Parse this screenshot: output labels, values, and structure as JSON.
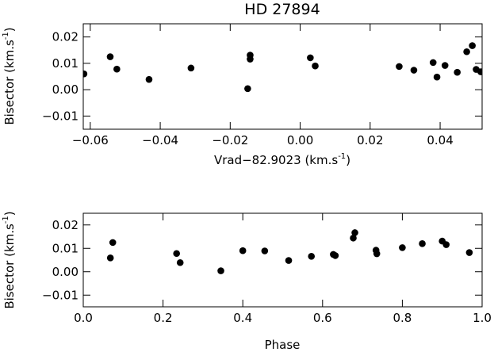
{
  "chart_data": [
    {
      "type": "scatter",
      "title": "HD 27894",
      "xlabel": "Vrad−82.9023 (km.s",
      "xlabel_sup": "-1",
      "xlabel_end": ")",
      "ylabel": "Bisector (km.s",
      "ylabel_sup": "-1",
      "ylabel_end": ")",
      "xlim": [
        -0.062,
        0.052
      ],
      "ylim": [
        -0.015,
        0.025
      ],
      "xticks": [
        -0.06,
        -0.04,
        -0.02,
        0.0,
        0.02,
        0.04
      ],
      "xtick_labels": [
        "−0.06",
        "−0.04",
        "−0.02",
        "0.00",
        "0.02",
        "0.04"
      ],
      "yticks": [
        -0.01,
        0.0,
        0.01,
        0.02
      ],
      "ytick_labels": [
        "−0.01",
        "0.00",
        "0.01",
        "0.02"
      ],
      "grid": false,
      "points": [
        {
          "x": -0.0618,
          "y": 0.006
        },
        {
          "x": -0.0543,
          "y": 0.0125
        },
        {
          "x": -0.0524,
          "y": 0.0078
        },
        {
          "x": -0.0432,
          "y": 0.0039
        },
        {
          "x": -0.0312,
          "y": 0.0082
        },
        {
          "x": -0.015,
          "y": 0.0004
        },
        {
          "x": -0.0143,
          "y": 0.0131
        },
        {
          "x": -0.0143,
          "y": 0.0116
        },
        {
          "x": 0.0029,
          "y": 0.0121
        },
        {
          "x": 0.0043,
          "y": 0.009
        },
        {
          "x": 0.0283,
          "y": 0.0088
        },
        {
          "x": 0.0325,
          "y": 0.0074
        },
        {
          "x": 0.038,
          "y": 0.0103
        },
        {
          "x": 0.0391,
          "y": 0.0048
        },
        {
          "x": 0.0414,
          "y": 0.0092
        },
        {
          "x": 0.0449,
          "y": 0.0066
        },
        {
          "x": 0.0476,
          "y": 0.0144
        },
        {
          "x": 0.0492,
          "y": 0.0167
        },
        {
          "x": 0.0503,
          "y": 0.0077
        },
        {
          "x": 0.0516,
          "y": 0.0068
        }
      ]
    },
    {
      "type": "scatter",
      "xlabel": "Phase",
      "ylabel": "Bisector (km.s",
      "ylabel_sup": "-1",
      "ylabel_end": ")",
      "xlim": [
        0.0,
        1.0
      ],
      "ylim": [
        -0.015,
        0.025
      ],
      "xticks": [
        0.0,
        0.2,
        0.4,
        0.6,
        0.8,
        1.0
      ],
      "xtick_labels": [
        "0.0",
        "0.2",
        "0.4",
        "0.6",
        "0.8",
        "1.0"
      ],
      "yticks": [
        -0.01,
        0.0,
        0.01,
        0.02
      ],
      "ytick_labels": [
        "−0.01",
        "0.00",
        "0.01",
        "0.02"
      ],
      "grid": false,
      "points": [
        {
          "x": 0.068,
          "y": 0.0059
        },
        {
          "x": 0.074,
          "y": 0.0125
        },
        {
          "x": 0.234,
          "y": 0.0078
        },
        {
          "x": 0.243,
          "y": 0.0039
        },
        {
          "x": 0.345,
          "y": 0.0004
        },
        {
          "x": 0.4,
          "y": 0.009
        },
        {
          "x": 0.455,
          "y": 0.0089
        },
        {
          "x": 0.515,
          "y": 0.0048
        },
        {
          "x": 0.572,
          "y": 0.0066
        },
        {
          "x": 0.627,
          "y": 0.0074
        },
        {
          "x": 0.632,
          "y": 0.0069
        },
        {
          "x": 0.677,
          "y": 0.0144
        },
        {
          "x": 0.681,
          "y": 0.0167
        },
        {
          "x": 0.734,
          "y": 0.0092
        },
        {
          "x": 0.736,
          "y": 0.0077
        },
        {
          "x": 0.8,
          "y": 0.0103
        },
        {
          "x": 0.85,
          "y": 0.012
        },
        {
          "x": 0.9,
          "y": 0.0131
        },
        {
          "x": 0.91,
          "y": 0.0116
        },
        {
          "x": 0.968,
          "y": 0.0082
        }
      ]
    }
  ]
}
